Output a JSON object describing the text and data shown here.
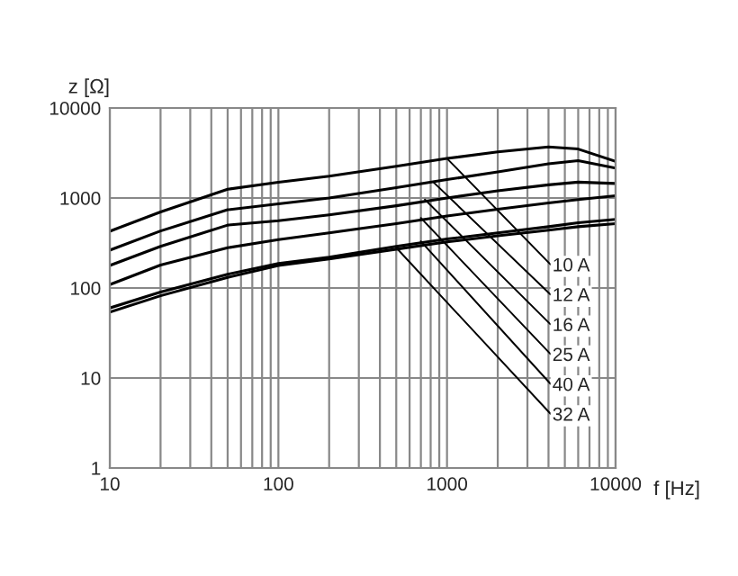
{
  "chart_data": {
    "type": "line",
    "xlabel": "f [Hz]",
    "ylabel": "z [Ω]",
    "log": "xy",
    "xlim": [
      10,
      10000
    ],
    "ylim": [
      1,
      10000
    ],
    "xticks": [
      10,
      100,
      1000,
      10000
    ],
    "yticks": [
      1,
      10,
      100,
      1000,
      10000
    ],
    "grid": true,
    "marker": "none",
    "line_style": "solid",
    "x": [
      10,
      20,
      50,
      100,
      200,
      500,
      1000,
      2000,
      4000,
      6000,
      10000
    ],
    "series": [
      {
        "color": "#000000",
        "values": [
          427,
          700,
          1250,
          1500,
          1750,
          2250,
          2750,
          3250,
          3700,
          3500,
          2550
        ]
      },
      {
        "color": "#000000",
        "values": [
          263,
          430,
          740,
          860,
          1000,
          1300,
          1600,
          1950,
          2400,
          2600,
          2150
        ]
      },
      {
        "color": "#000000",
        "values": [
          178,
          290,
          500,
          560,
          650,
          820,
          1000,
          1200,
          1400,
          1500,
          1450
        ]
      },
      {
        "color": "#000000",
        "values": [
          109,
          180,
          280,
          345,
          410,
          520,
          630,
          750,
          880,
          960,
          1060
        ]
      },
      {
        "color": "#000000",
        "values": [
          60,
          90,
          142,
          187,
          220,
          290,
          350,
          410,
          480,
          530,
          580
        ]
      },
      {
        "color": "#000000",
        "values": [
          54,
          82,
          131,
          178,
          210,
          270,
          325,
          380,
          440,
          480,
          520
        ]
      }
    ],
    "annotations": [
      {
        "text": "10 A",
        "x": 1000,
        "y": 2750
      },
      {
        "text": "12 A",
        "x": 830,
        "y": 1500
      },
      {
        "text": "16 A",
        "x": 740,
        "y": 960
      },
      {
        "text": "25 A",
        "x": 700,
        "y": 600
      },
      {
        "text": "40 A",
        "x": 700,
        "y": 330
      },
      {
        "text": "32 A",
        "x": 500,
        "y": 280
      }
    ]
  }
}
